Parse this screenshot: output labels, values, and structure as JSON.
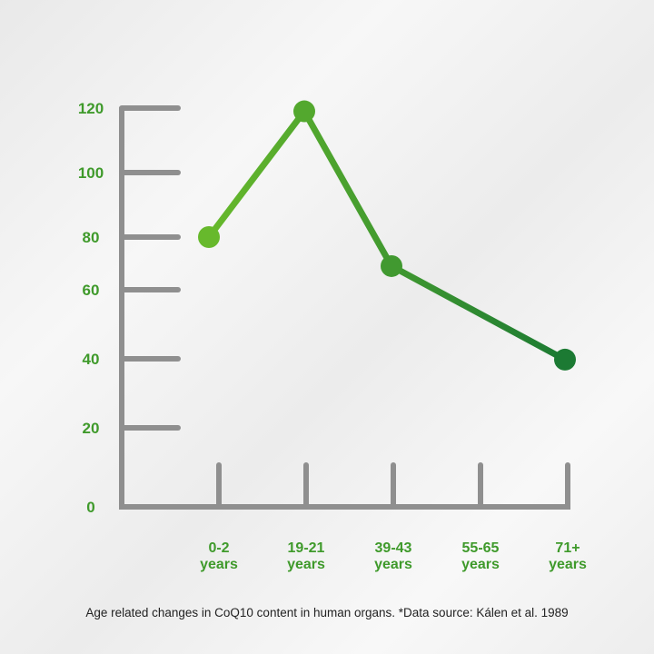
{
  "caption": "Age related changes in CoQ10 content in human organs.  *Data source: Kálen et al. 1989",
  "colors": {
    "axis": "#8f8f8f",
    "tick_label": "#3f9a2b",
    "line_start": "#67b92c",
    "line_end": "#1c7a33"
  },
  "chart_data": {
    "type": "line",
    "categories": [
      {
        "line1": "0-2",
        "line2": "years"
      },
      {
        "line1": "19-21",
        "line2": "years"
      },
      {
        "line1": "39-43",
        "line2": "years"
      },
      {
        "line1": "55-65",
        "line2": "years"
      },
      {
        "line1": "71+",
        "line2": "years"
      }
    ],
    "series": [
      {
        "values": [
          80,
          119,
          71,
          null,
          42
        ]
      }
    ],
    "yticks": [
      0,
      20,
      40,
      60,
      80,
      100,
      120
    ],
    "ylim": [
      0,
      120
    ],
    "grid": false
  }
}
